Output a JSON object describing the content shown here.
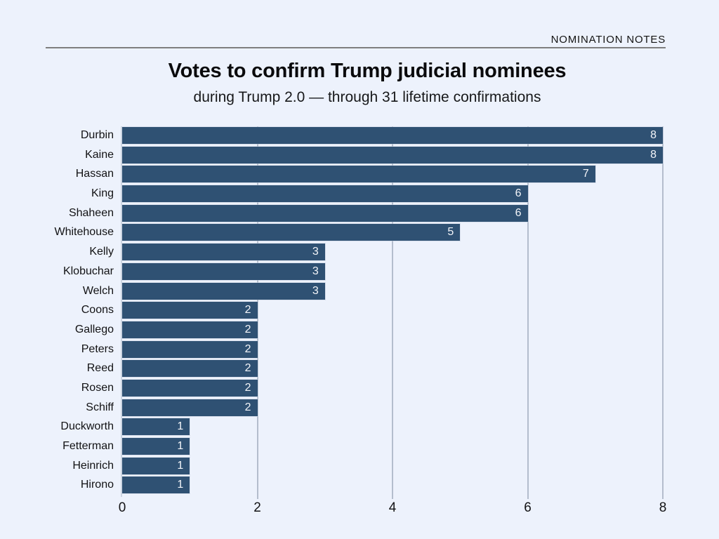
{
  "header": {
    "brand": "NOMINATION NOTES"
  },
  "title": "Votes to confirm Trump judicial nominees",
  "subtitle": "during Trump 2.0 — through 31 lifetime confirmations",
  "colors": {
    "bg": "#edf2fc",
    "bar": "#2f5173",
    "gridline": "#b4bdcd",
    "axis_line": "#cdd5e2",
    "rule": "#7f7f7f",
    "text": "#0e0e10",
    "value_label": "#f3f5f9"
  },
  "chart_data": {
    "type": "bar",
    "orientation": "horizontal",
    "title": "Votes to confirm Trump judicial nominees",
    "subtitle": "during Trump 2.0 — through 31 lifetime confirmations",
    "categories": [
      "Durbin",
      "Kaine",
      "Hassan",
      "King",
      "Shaheen",
      "Whitehouse",
      "Kelly",
      "Klobuchar",
      "Welch",
      "Coons",
      "Gallego",
      "Peters",
      "Reed",
      "Rosen",
      "Schiff",
      "Duckworth",
      "Fetterman",
      "Heinrich",
      "Hirono"
    ],
    "values": [
      8,
      8,
      7,
      6,
      6,
      5,
      3,
      3,
      3,
      2,
      2,
      2,
      2,
      2,
      2,
      1,
      1,
      1,
      1
    ],
    "xlabel": "",
    "ylabel": "",
    "xlim": [
      0,
      8
    ],
    "x_ticks": [
      0,
      2,
      4,
      6,
      8
    ],
    "grid": "vertical gridlines at 2, 4, 6, 8",
    "bar_labels": "value shown in white inside right end of each bar",
    "legend": "none"
  }
}
